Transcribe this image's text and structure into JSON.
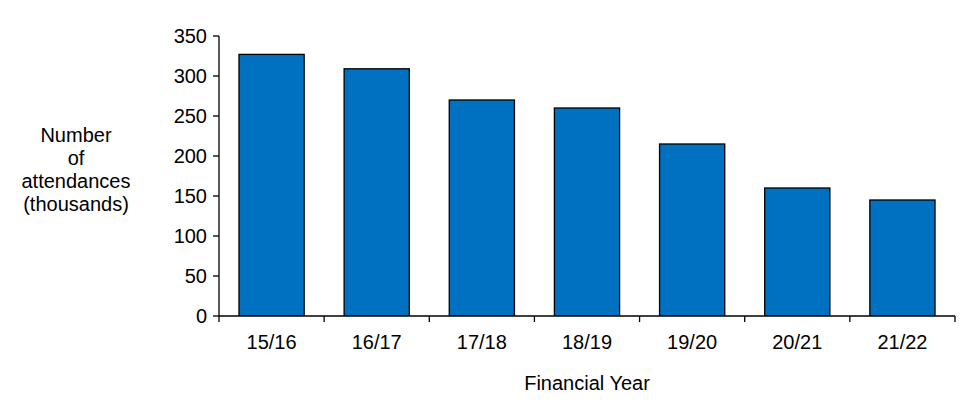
{
  "chart_data": {
    "type": "bar",
    "y_label": "Number of attendances (thousands)",
    "x_label": "Financial Year",
    "categories": [
      "15/16",
      "16/17",
      "17/18",
      "18/19",
      "19/20",
      "20/21",
      "21/22"
    ],
    "values": [
      327,
      309,
      270,
      260,
      215,
      160,
      145
    ],
    "color": "#0070c0",
    "ylim": [
      0,
      350
    ],
    "yticks": [
      0,
      50,
      100,
      150,
      200,
      250,
      300,
      350
    ],
    "grid": false
  }
}
